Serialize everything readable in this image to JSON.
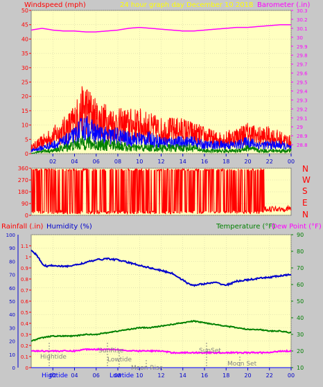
{
  "header": {
    "windspeed_label": "Windspeed (mph)",
    "center_title": "24 hour graph day   December 10 2018",
    "barometer_label": "Barometer (.in)"
  },
  "legend": {
    "rainfall_label": "Rainfall (.in)",
    "humidity_label": "Humidity (%)",
    "temperature_label": "Temperature (°F)",
    "dewpoint_label": "Dew Point (°F)"
  },
  "x_ticks": [
    "02",
    "04",
    "06",
    "08",
    "10",
    "12",
    "14",
    "16",
    "18",
    "20",
    "22",
    "00"
  ],
  "direction_labels": [
    "N",
    "W",
    "S",
    "E",
    "N"
  ],
  "annotations": {
    "hightide1": "Hightide",
    "sunrise": "SunRise",
    "lowtide": "Lowtide",
    "moonrise": "Moon Rise",
    "sunset": "SunSet",
    "moonset": "Moon Set",
    "hightide_bottom": "Hightide",
    "lowtide_bottom": "Lowtide"
  },
  "colors": {
    "plot_bg": "#ffffc0",
    "frame_bg": "#c8c8c8",
    "wind_gust": "#ff0000",
    "wind_avg": "#0000ff",
    "wind_low": "#008000",
    "barometer": "#ff00ff",
    "direction": "#ff0000",
    "humidity": "#0000cc",
    "temperature": "#008000",
    "dewpoint": "#ff00ff",
    "rain": "#0000ff",
    "tick_red": "#ff0000",
    "title_yellow": "#ffff00"
  },
  "chart_data": [
    {
      "type": "line",
      "panel": "wind",
      "x_range": [
        0,
        24
      ],
      "ylabel": "Windspeed (mph)",
      "y2label": "Barometer (.in)",
      "ylim": [
        0,
        50
      ],
      "yticks": [
        0,
        5,
        10,
        15,
        20,
        25,
        30,
        35,
        40,
        45,
        50
      ],
      "y2lim": [
        28.7,
        30.3
      ],
      "y2ticks": [
        "28.8",
        "28.9",
        "29",
        "29.1",
        "29.2",
        "29.3",
        "29.4",
        "29.5",
        "29.6",
        "29.7",
        "29.8",
        "29.9",
        "30",
        "30.1",
        "30.2",
        "30.3"
      ],
      "series": [
        {
          "name": "gust",
          "x": [
            0,
            1,
            2,
            3,
            4,
            4.5,
            5,
            5.5,
            6,
            7,
            8,
            9,
            10,
            11,
            12,
            13,
            14,
            15,
            16,
            17,
            18,
            19,
            20,
            21,
            22,
            23,
            24
          ],
          "values": [
            2,
            4,
            6,
            8,
            11,
            14,
            16,
            14,
            12,
            11,
            10,
            10,
            10,
            9,
            8,
            8,
            8,
            7,
            6,
            5,
            5,
            6,
            7,
            6,
            6,
            5,
            4
          ]
        },
        {
          "name": "average",
          "x": [
            0,
            1,
            2,
            3,
            4,
            4.5,
            5,
            5.5,
            6,
            7,
            8,
            9,
            10,
            11,
            12,
            13,
            14,
            15,
            16,
            17,
            18,
            19,
            20,
            21,
            22,
            23,
            24
          ],
          "values": [
            1,
            2,
            3,
            4,
            6,
            8,
            9,
            8,
            7,
            6,
            6,
            5,
            5,
            5,
            4,
            4,
            4,
            4,
            3,
            3,
            3,
            3,
            4,
            3,
            3,
            3,
            2
          ]
        },
        {
          "name": "low",
          "x": [
            0,
            1,
            2,
            3,
            4,
            5,
            6,
            7,
            8,
            9,
            10,
            11,
            12,
            13,
            14,
            15,
            16,
            17,
            18,
            19,
            20,
            21,
            22,
            23,
            24
          ],
          "values": [
            0,
            1,
            1,
            2,
            3,
            4,
            3,
            3,
            3,
            2,
            2,
            2,
            2,
            2,
            2,
            2,
            1,
            1,
            1,
            1,
            2,
            1,
            1,
            1,
            1
          ]
        },
        {
          "name": "barometer",
          "axis": "y2",
          "x": [
            0,
            1,
            2,
            3,
            4,
            5,
            6,
            7,
            8,
            9,
            10,
            11,
            12,
            13,
            14,
            15,
            16,
            17,
            18,
            19,
            20,
            21,
            22,
            23,
            24
          ],
          "values": [
            30.08,
            30.1,
            30.08,
            30.07,
            30.07,
            30.06,
            30.06,
            30.07,
            30.08,
            30.1,
            30.11,
            30.1,
            30.09,
            30.08,
            30.07,
            30.07,
            30.08,
            30.09,
            30.1,
            30.11,
            30.11,
            30.12,
            30.13,
            30.14,
            30.14
          ]
        }
      ]
    },
    {
      "type": "line",
      "panel": "direction",
      "x_range": [
        0,
        24
      ],
      "ylim": [
        0,
        360
      ],
      "yticks": [
        0,
        90,
        180,
        270,
        360
      ],
      "series": [
        {
          "name": "direction",
          "x": [
            0,
            0.5,
            1,
            2,
            3,
            4,
            5,
            6,
            7,
            8,
            9,
            10,
            11,
            12,
            13,
            14,
            15,
            16,
            17,
            18,
            19,
            20,
            21,
            22,
            23,
            24
          ],
          "values": [
            340,
            330,
            20,
            350,
            10,
            340,
            20,
            350,
            10,
            340,
            30,
            350,
            10,
            340,
            20,
            350,
            30,
            340,
            10,
            350,
            20,
            340,
            30,
            40,
            60,
            50
          ]
        }
      ]
    },
    {
      "type": "line",
      "panel": "climate",
      "x_range": [
        0,
        24
      ],
      "ylabel": "Rainfall (.in)",
      "y_inner_label": "Humidity (%)",
      "y2label": "Temperature (°F)",
      "ylim_rain": [
        0,
        1.2
      ],
      "yticks_rain": [
        "0",
        "0.1",
        "0.2",
        "0.3",
        "0.4",
        "0.5",
        "0.6",
        "0.7",
        "0.8",
        "0.9",
        "1",
        "1.1"
      ],
      "ylim_humidity": [
        0,
        100
      ],
      "yticks_humidity": [
        0,
        10,
        20,
        30,
        40,
        50,
        60,
        70,
        80,
        90,
        100
      ],
      "ylim_temp": [
        10,
        90
      ],
      "yticks_temp": [
        10,
        20,
        30,
        40,
        50,
        60,
        70,
        80,
        90
      ],
      "series": [
        {
          "name": "humidity",
          "x": [
            0,
            0.5,
            1,
            1.5,
            2,
            3,
            4,
            5,
            6,
            7,
            8,
            9,
            10,
            11,
            12,
            13,
            14,
            14.5,
            15,
            16,
            17,
            18,
            19,
            20,
            21,
            22,
            23,
            24
          ],
          "values": [
            88,
            85,
            78,
            76,
            77,
            76,
            77,
            79,
            81,
            82,
            81,
            79,
            77,
            75,
            73,
            71,
            66,
            63,
            62,
            63,
            64,
            62,
            65,
            66,
            67,
            68,
            69,
            70
          ]
        },
        {
          "name": "temperature",
          "x": [
            0,
            1,
            2,
            3,
            4,
            5,
            6,
            7,
            8,
            9,
            10,
            11,
            12,
            13,
            14,
            15,
            16,
            17,
            18,
            19,
            20,
            21,
            22,
            23,
            24
          ],
          "values": [
            26,
            28,
            29,
            29,
            29,
            30,
            30,
            31,
            32,
            33,
            34,
            34,
            35,
            36,
            37,
            38,
            37,
            36,
            35,
            34,
            33,
            33,
            32,
            32,
            31
          ]
        },
        {
          "name": "dewpoint",
          "x": [
            0,
            1,
            2,
            3,
            4,
            5,
            6,
            7,
            8,
            9,
            10,
            11,
            12,
            13,
            14,
            15,
            16,
            17,
            18,
            19,
            20,
            21,
            22,
            23,
            24
          ],
          "values": [
            20,
            20,
            20,
            20,
            20,
            21,
            21,
            21,
            21,
            20,
            20,
            20,
            20,
            19,
            19,
            19,
            19,
            19,
            19,
            19,
            19,
            19,
            19,
            20,
            20
          ]
        },
        {
          "name": "rainfall",
          "x": [
            0,
            24
          ],
          "values": [
            0,
            0
          ]
        }
      ]
    }
  ]
}
